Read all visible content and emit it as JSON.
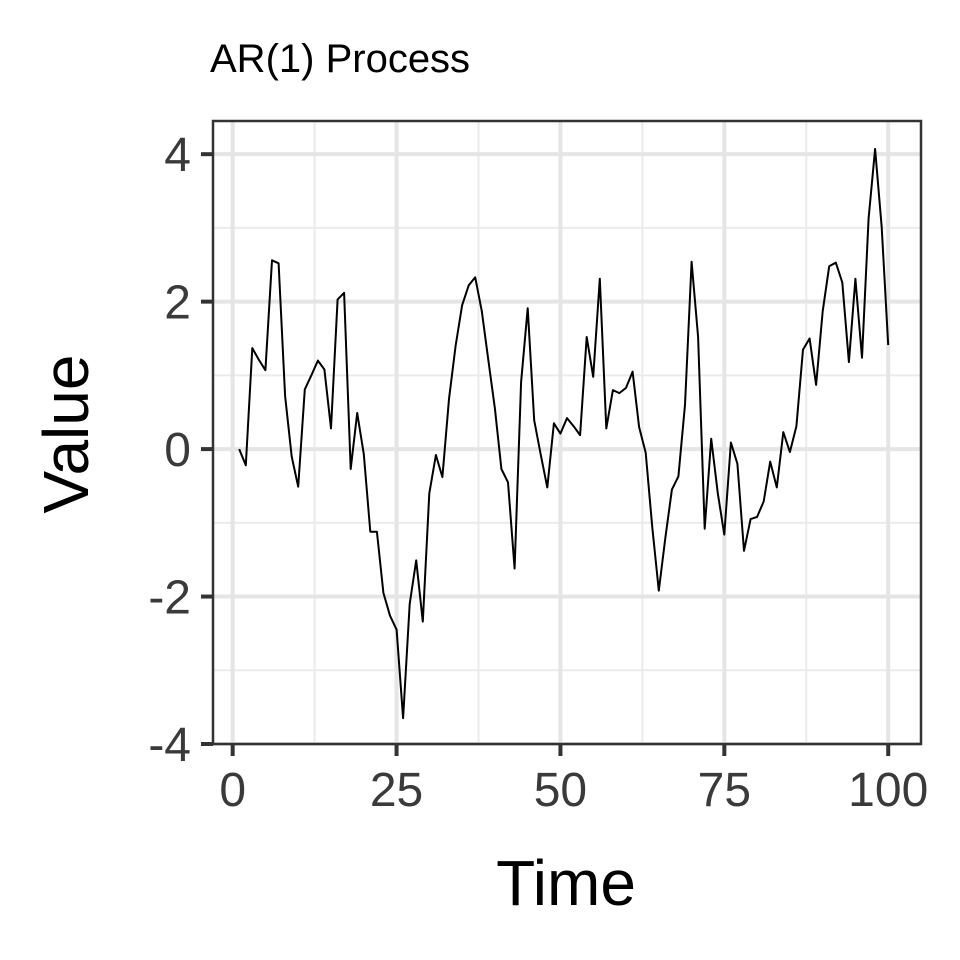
{
  "chart_data": {
    "type": "line",
    "title": "AR(1) Process",
    "xlabel": "Time",
    "ylabel": "Value",
    "xlim": [
      -3,
      105
    ],
    "ylim": [
      -4,
      4.45
    ],
    "grid": true,
    "x_ticks": [
      0,
      25,
      50,
      75,
      100
    ],
    "y_ticks": [
      -4,
      -2,
      0,
      2,
      4
    ],
    "x_tick_labels": [
      "0",
      "25",
      "50",
      "75",
      "100"
    ],
    "y_tick_labels": [
      "-4",
      "-2",
      "0",
      "2",
      "4"
    ],
    "line_color": "#000000",
    "series": [
      {
        "x": [
          1,
          2,
          3,
          4,
          5,
          6,
          7,
          8,
          9,
          10,
          11,
          12,
          13,
          14,
          15,
          16,
          17,
          18,
          19,
          20,
          21,
          22,
          23,
          24,
          25,
          26,
          27,
          28,
          29,
          30,
          31,
          32,
          33,
          34,
          35,
          36,
          37,
          38,
          39,
          40,
          41,
          42,
          43,
          44,
          45,
          46,
          47,
          48,
          49,
          50,
          51,
          52,
          53,
          54,
          55,
          56,
          57,
          58,
          59,
          60,
          61,
          62,
          63,
          64,
          65,
          66,
          67,
          68,
          69,
          70,
          71,
          72,
          73,
          74,
          75,
          76,
          77,
          78,
          79,
          80,
          81,
          82,
          83,
          84,
          85,
          86,
          87,
          88,
          89,
          90,
          91,
          92,
          93,
          94,
          95,
          96,
          97,
          98,
          99,
          100
        ],
        "values": [
          0.0,
          -0.22,
          1.37,
          1.21,
          1.07,
          2.56,
          2.52,
          0.72,
          -0.1,
          -0.51,
          0.81,
          1.0,
          1.2,
          1.08,
          0.28,
          2.03,
          2.12,
          -0.27,
          0.49,
          -0.07,
          -1.12,
          -1.12,
          -1.95,
          -2.26,
          -2.45,
          -3.65,
          -2.1,
          -1.51,
          -2.34,
          -0.6,
          -0.08,
          -0.38,
          0.68,
          1.4,
          1.95,
          2.22,
          2.33,
          1.87,
          1.21,
          0.55,
          -0.27,
          -0.45,
          -1.62,
          0.91,
          1.91,
          0.39,
          -0.08,
          -0.52,
          0.35,
          0.21,
          0.42,
          0.31,
          0.19,
          1.52,
          0.98,
          2.31,
          0.28,
          0.8,
          0.76,
          0.83,
          1.05,
          0.3,
          -0.05,
          -1.05,
          -1.92,
          -1.21,
          -0.55,
          -0.37,
          0.6,
          2.54,
          1.52,
          -1.08,
          0.14,
          -0.6,
          -1.16,
          0.09,
          -0.2,
          -1.38,
          -0.95,
          -0.92,
          -0.71,
          -0.17,
          -0.52,
          0.23,
          -0.04,
          0.31,
          1.35,
          1.5,
          0.87,
          1.87,
          2.48,
          2.53,
          2.26,
          1.18,
          2.31,
          1.24,
          3.13,
          4.07,
          3.01,
          1.41
        ]
      }
    ]
  }
}
